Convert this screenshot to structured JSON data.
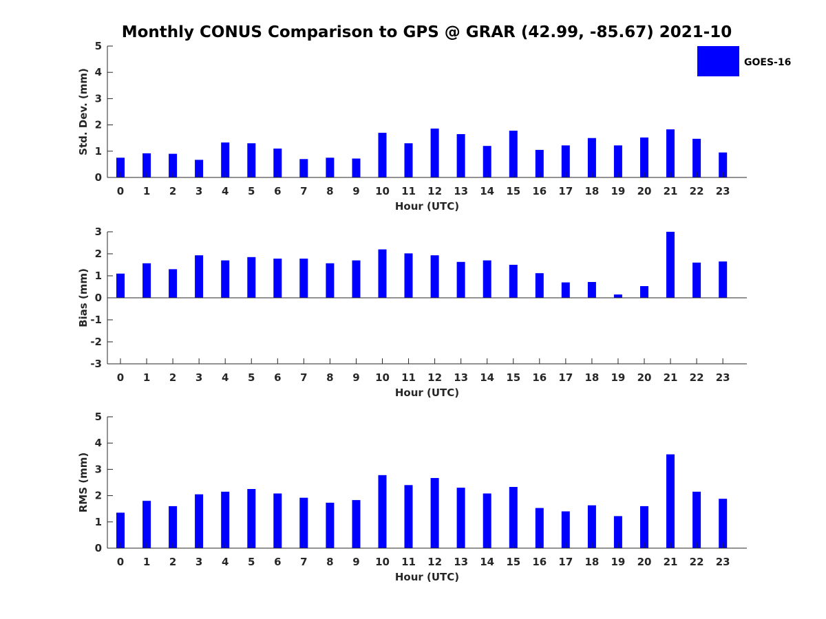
{
  "chart_data": [
    {
      "type": "bar",
      "title": "Monthly CONUS Comparison to GPS @ GRAR (42.99, -85.67) 2021-10",
      "xlabel": "Hour (UTC)",
      "ylabel": "Std. Dev. (mm)",
      "categories": [
        "0",
        "1",
        "2",
        "3",
        "4",
        "5",
        "6",
        "7",
        "8",
        "9",
        "10",
        "11",
        "12",
        "13",
        "14",
        "15",
        "16",
        "17",
        "18",
        "19",
        "20",
        "21",
        "22",
        "23"
      ],
      "series": [
        {
          "name": "GOES-16",
          "values": [
            0.75,
            0.92,
            0.9,
            0.67,
            1.33,
            1.3,
            1.1,
            0.7,
            0.75,
            0.72,
            1.7,
            1.3,
            1.86,
            1.65,
            1.2,
            1.78,
            1.05,
            1.22,
            1.5,
            1.22,
            1.52,
            1.83,
            1.47,
            0.95
          ]
        }
      ],
      "ylim": [
        0,
        5
      ],
      "yticks": [
        0,
        1,
        2,
        3,
        4,
        5
      ],
      "color": "#0000ff",
      "legend": "top-right",
      "grid": false
    },
    {
      "type": "bar",
      "title": "",
      "xlabel": "Hour (UTC)",
      "ylabel": "Bias (mm)",
      "categories": [
        "0",
        "1",
        "2",
        "3",
        "4",
        "5",
        "6",
        "7",
        "8",
        "9",
        "10",
        "11",
        "12",
        "13",
        "14",
        "15",
        "16",
        "17",
        "18",
        "19",
        "20",
        "21",
        "22",
        "23"
      ],
      "series": [
        {
          "name": "GOES-16",
          "values": [
            1.1,
            1.57,
            1.3,
            1.93,
            1.7,
            1.85,
            1.78,
            1.78,
            1.57,
            1.7,
            2.2,
            2.02,
            1.93,
            1.63,
            1.7,
            1.5,
            1.12,
            0.7,
            0.72,
            0.15,
            0.53,
            3.0,
            1.6,
            1.65
          ]
        }
      ],
      "ylim": [
        -3,
        3
      ],
      "yticks": [
        -3,
        -2,
        -1,
        0,
        1,
        2,
        3
      ],
      "zero_line": true,
      "color": "#0000ff",
      "grid": false
    },
    {
      "type": "bar",
      "title": "",
      "xlabel": "Hour (UTC)",
      "ylabel": "RMS (mm)",
      "categories": [
        "0",
        "1",
        "2",
        "3",
        "4",
        "5",
        "6",
        "7",
        "8",
        "9",
        "10",
        "11",
        "12",
        "13",
        "14",
        "15",
        "16",
        "17",
        "18",
        "19",
        "20",
        "21",
        "22",
        "23"
      ],
      "series": [
        {
          "name": "GOES-16",
          "values": [
            1.35,
            1.8,
            1.6,
            2.05,
            2.15,
            2.25,
            2.08,
            1.92,
            1.73,
            1.83,
            2.78,
            2.4,
            2.67,
            2.3,
            2.08,
            2.33,
            1.53,
            1.4,
            1.63,
            1.22,
            1.6,
            3.57,
            2.15,
            1.88
          ]
        }
      ],
      "ylim": [
        0,
        5
      ],
      "yticks": [
        0,
        1,
        2,
        3,
        4,
        5
      ],
      "color": "#0000ff",
      "grid": false
    }
  ],
  "legend": {
    "label": "GOES-16",
    "color": "#0000ff"
  }
}
